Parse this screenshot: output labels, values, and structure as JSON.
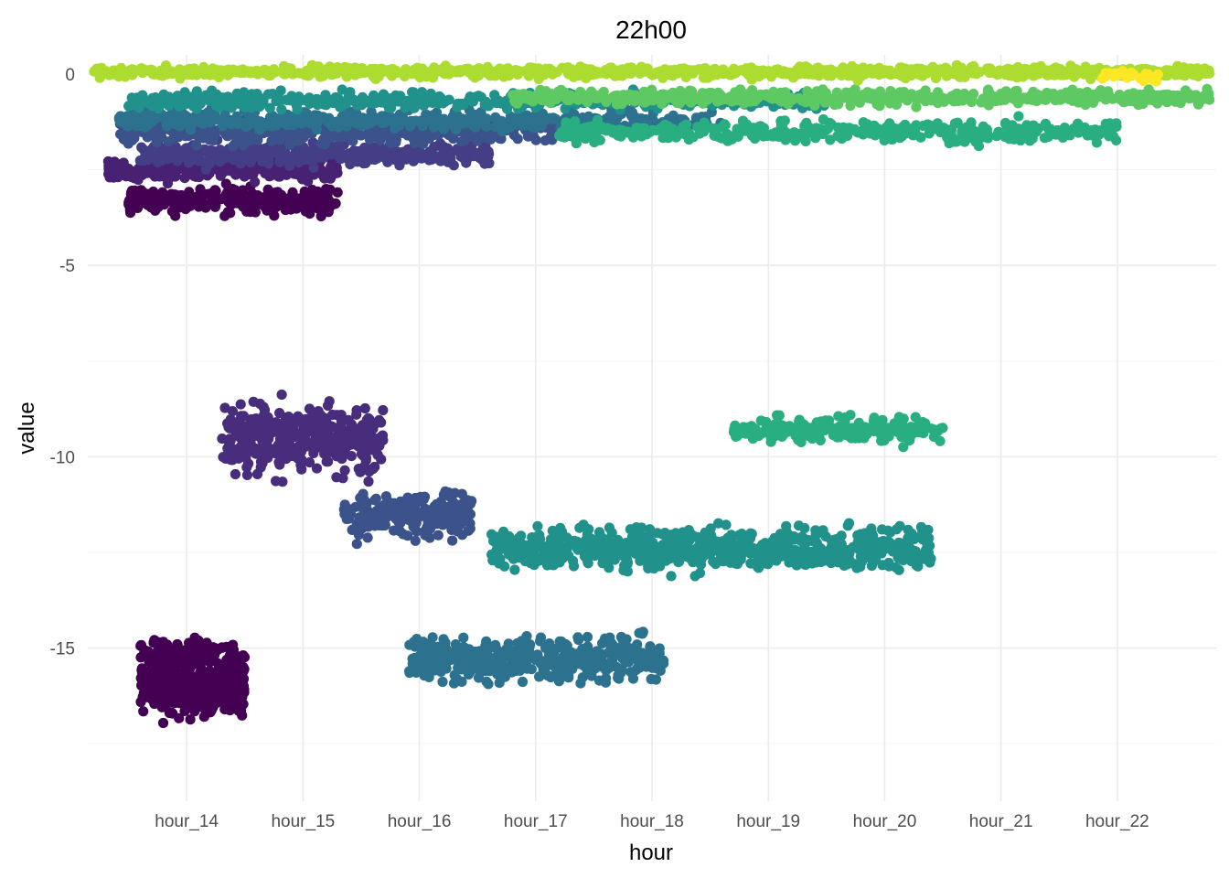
{
  "chart_data": {
    "type": "scatter",
    "title": "22h00",
    "xlabel": "hour",
    "ylabel": "value",
    "x_categories": [
      "hour_14",
      "hour_15",
      "hour_16",
      "hour_17",
      "hour_18",
      "hour_19",
      "hour_20",
      "hour_21",
      "hour_22"
    ],
    "xlim": [
      0.15,
      9.85
    ],
    "ylim": [
      -19.0,
      0.5
    ],
    "y_ticks": [
      0,
      -5,
      -10,
      -15
    ],
    "grid": true,
    "legend": "none",
    "color_scale": "viridis",
    "clusters": [
      {
        "x_center": 1.05,
        "x_spread": 0.45,
        "y_center": -16.0,
        "y_spread": 0.8,
        "color": "#440154",
        "n": 430
      },
      {
        "x_center": 1.05,
        "x_spread": 0.45,
        "y_center": -15.1,
        "y_spread": 0.35,
        "color": "#440154",
        "n": 90
      },
      {
        "x_center": 1.4,
        "x_spread": 0.9,
        "y_center": -3.3,
        "y_spread": 0.35,
        "color": "#440154",
        "n": 260
      },
      {
        "x_center": 1.3,
        "x_spread": 1.0,
        "y_center": -2.5,
        "y_spread": 0.3,
        "color": "#482173",
        "n": 300
      },
      {
        "x_center": 2.0,
        "x_spread": 0.7,
        "y_center": -9.5,
        "y_spread": 0.9,
        "color": "#472d7b",
        "n": 360
      },
      {
        "x_center": 2.1,
        "x_spread": 1.5,
        "y_center": -2.1,
        "y_spread": 0.3,
        "color": "#433e85",
        "n": 380
      },
      {
        "x_center": 2.9,
        "x_spread": 0.55,
        "y_center": -11.5,
        "y_spread": 0.6,
        "color": "#3b528b",
        "n": 240
      },
      {
        "x_center": 2.4,
        "x_spread": 2.0,
        "y_center": -1.5,
        "y_spread": 0.3,
        "color": "#3b528b",
        "n": 430
      },
      {
        "x_center": 4.0,
        "x_spread": 1.1,
        "y_center": -15.3,
        "y_spread": 0.6,
        "color": "#2c728e",
        "n": 420
      },
      {
        "x_center": 3.0,
        "x_spread": 2.6,
        "y_center": -1.2,
        "y_spread": 0.25,
        "color": "#2c728e",
        "n": 430
      },
      {
        "x_center": 5.5,
        "x_spread": 1.9,
        "y_center": -12.4,
        "y_spread": 0.55,
        "color": "#21918c",
        "n": 760
      },
      {
        "x_center": 3.5,
        "x_spread": 3.0,
        "y_center": -0.7,
        "y_spread": 0.22,
        "color": "#21918c",
        "n": 480
      },
      {
        "x_center": 6.6,
        "x_spread": 0.9,
        "y_center": -9.3,
        "y_spread": 0.35,
        "color": "#28ae80",
        "n": 200
      },
      {
        "x_center": 6.6,
        "x_spread": 2.4,
        "y_center": -1.5,
        "y_spread": 0.3,
        "color": "#28ae80",
        "n": 380
      },
      {
        "x_center": 6.8,
        "x_spread": 3.0,
        "y_center": -0.6,
        "y_spread": 0.2,
        "color": "#5ec962",
        "n": 560
      },
      {
        "x_center": 5.0,
        "x_spread": 4.8,
        "y_center": 0.05,
        "y_spread": 0.15,
        "color": "#addc30",
        "n": 900
      },
      {
        "x_center": 9.1,
        "x_spread": 0.25,
        "y_center": -0.05,
        "y_spread": 0.15,
        "color": "#fde725",
        "n": 25
      }
    ]
  }
}
